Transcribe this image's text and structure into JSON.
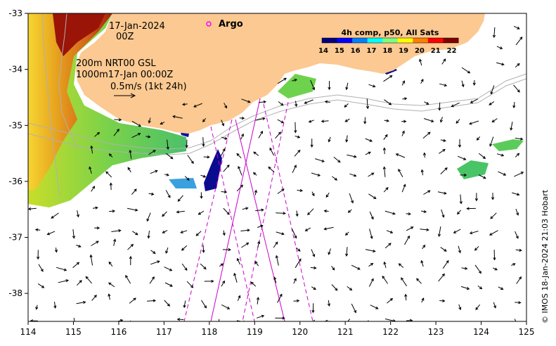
{
  "annotations": {
    "date": "17-Jan-2024",
    "hour": "00Z",
    "contour_info_1": "200m  NRT00 GSL",
    "contour_info_2": "1000m17-Jan 00:00Z",
    "vector_scale": "0.5m/s (1kt 24h)",
    "argo_label": "Argo",
    "credit": "© IMOS 18-Jan-2024 21:03 Hobart"
  },
  "colorbar": {
    "title": "4h comp, p50, All Sats",
    "labels": [
      "14",
      "15",
      "16",
      "17",
      "18",
      "19",
      "20",
      "21",
      "22"
    ],
    "min": 14,
    "max": 22.5,
    "colors": [
      "#00007f",
      "#0000ff",
      "#007fff",
      "#00ffff",
      "#7fff7f",
      "#ffff00",
      "#ff7f00",
      "#ff0000",
      "#7f0000"
    ]
  },
  "colors": {
    "land": "#fbc991",
    "track": "#cc00cc",
    "argo": "#ff00ff",
    "contour": "#b0b0b0"
  },
  "chart_data": {
    "type": "map",
    "x_ticks": [
      114,
      115,
      116,
      117,
      118,
      119,
      120,
      121,
      122,
      123,
      124,
      125
    ],
    "y_ticks": [
      -33,
      -34,
      -35,
      -36,
      -37,
      -38
    ],
    "xlim": [
      114,
      125
    ],
    "ylim": [
      -38.5,
      -33
    ],
    "tick_labels_x": [
      "114",
      "115",
      "116",
      "117",
      "118",
      "119",
      "120",
      "121",
      "122",
      "123",
      "124",
      "125"
    ],
    "tick_labels_y": [
      "-33",
      "-34",
      "-35",
      "-36",
      "-37",
      "-38"
    ]
  }
}
